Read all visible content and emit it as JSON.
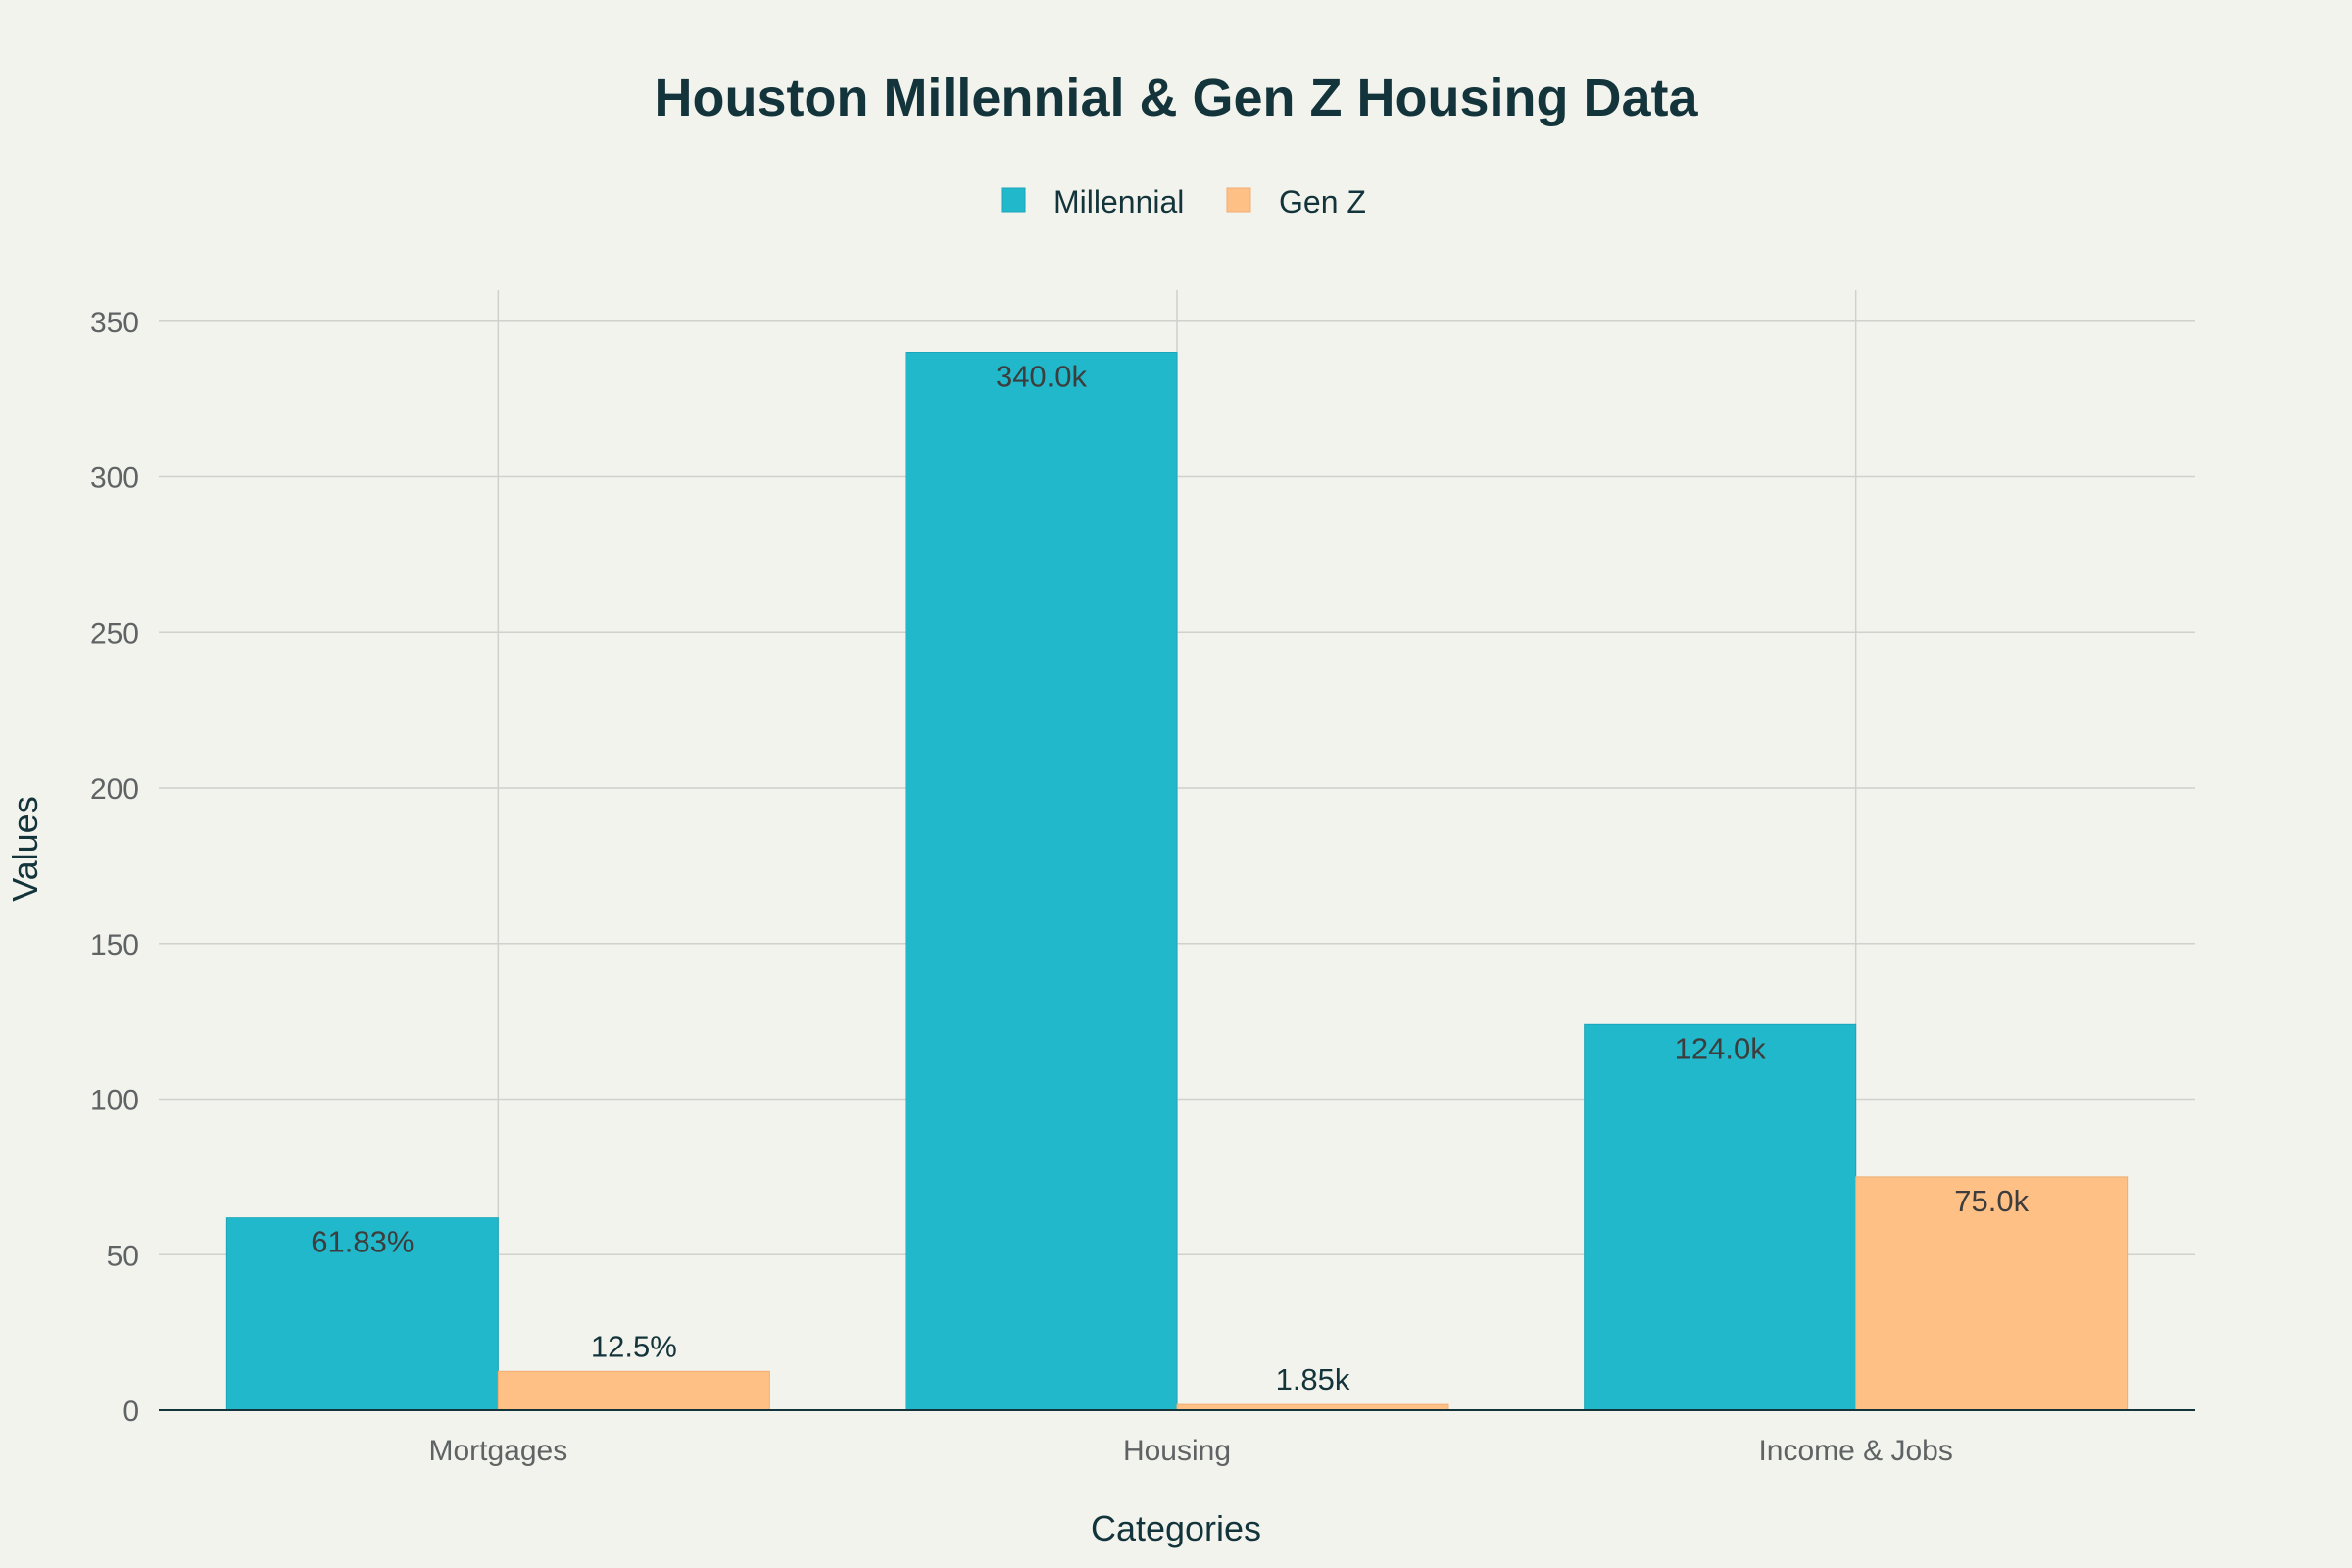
{
  "chart_data": {
    "type": "bar",
    "title": "Houston Millennial & Gen Z Housing Data",
    "xlabel": "Categories",
    "ylabel": "Values",
    "ylim": [
      0,
      360
    ],
    "yticks": [
      0,
      50,
      100,
      150,
      200,
      250,
      300,
      350
    ],
    "grid": true,
    "legend_position": "top-center",
    "categories": [
      "Mortgages",
      "Housing",
      "Income & Jobs"
    ],
    "series": [
      {
        "name": "Millennial",
        "color": "#21b8cb",
        "values": [
          61.83,
          340,
          124
        ],
        "labels": [
          "61.83%",
          "340.0k",
          "124.0k"
        ],
        "label_position": "inside"
      },
      {
        "name": "Gen Z",
        "color": "#ffc085",
        "values": [
          12.5,
          1.85,
          75
        ],
        "labels": [
          "12.5%",
          "1.85k",
          "75.0k"
        ],
        "label_positions": [
          "outside",
          "outside",
          "inside"
        ]
      }
    ]
  }
}
